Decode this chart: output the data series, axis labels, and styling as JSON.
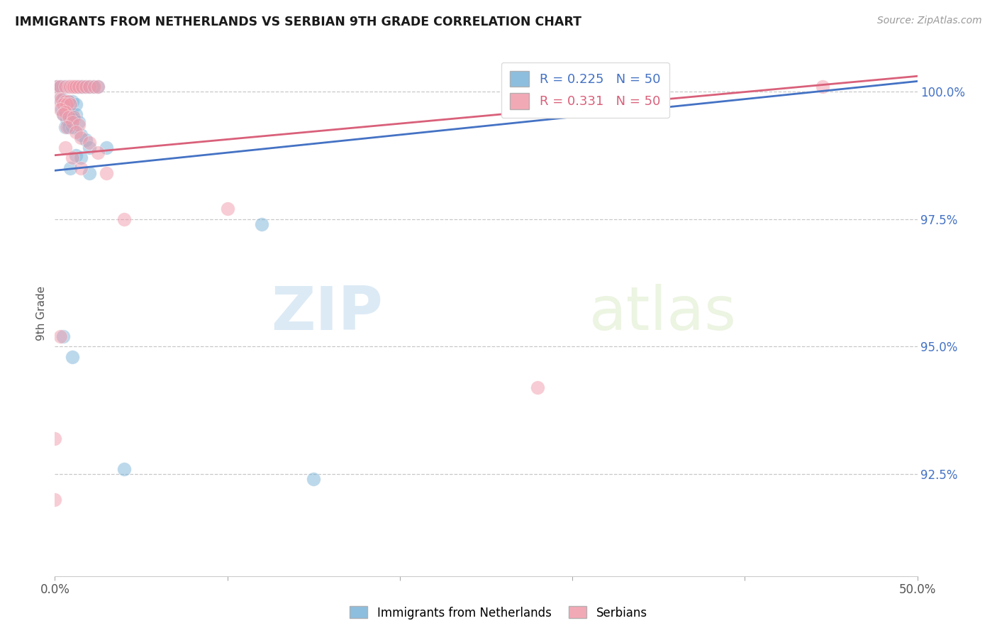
{
  "title": "IMMIGRANTS FROM NETHERLANDS VS SERBIAN 9TH GRADE CORRELATION CHART",
  "source": "Source: ZipAtlas.com",
  "ylabel": "9th Grade",
  "ylabel_right_ticks": [
    "100.0%",
    "97.5%",
    "95.0%",
    "92.5%"
  ],
  "ylabel_right_vals": [
    1.0,
    0.975,
    0.95,
    0.925
  ],
  "blue_color": "#7ab3d9",
  "pink_color": "#f09aaa",
  "blue_line_color": "#4472c4",
  "pink_line_color": "#d9607a",
  "xlim": [
    0.0,
    0.5
  ],
  "ylim": [
    0.905,
    1.008
  ],
  "grid_color": "#c8c8c8",
  "blue_scatter": [
    [
      0.001,
      1.001
    ],
    [
      0.003,
      1.001
    ],
    [
      0.005,
      1.001
    ],
    [
      0.007,
      1.001
    ],
    [
      0.008,
      1.001
    ],
    [
      0.009,
      1.001
    ],
    [
      0.01,
      1.001
    ],
    [
      0.011,
      1.001
    ],
    [
      0.012,
      1.001
    ],
    [
      0.013,
      1.001
    ],
    [
      0.014,
      1.001
    ],
    [
      0.015,
      1.001
    ],
    [
      0.016,
      1.001
    ],
    [
      0.018,
      1.001
    ],
    [
      0.02,
      1.001
    ],
    [
      0.022,
      1.001
    ],
    [
      0.025,
      1.001
    ],
    [
      0.003,
      0.9985
    ],
    [
      0.005,
      0.9985
    ],
    [
      0.007,
      0.9975
    ],
    [
      0.008,
      0.998
    ],
    [
      0.01,
      0.998
    ],
    [
      0.012,
      0.9975
    ],
    [
      0.004,
      0.9965
    ],
    [
      0.006,
      0.9965
    ],
    [
      0.005,
      0.9955
    ],
    [
      0.008,
      0.9955
    ],
    [
      0.01,
      0.9955
    ],
    [
      0.012,
      0.9955
    ],
    [
      0.007,
      0.9945
    ],
    [
      0.009,
      0.9945
    ],
    [
      0.011,
      0.9945
    ],
    [
      0.014,
      0.994
    ],
    [
      0.006,
      0.993
    ],
    [
      0.008,
      0.993
    ],
    [
      0.01,
      0.993
    ],
    [
      0.015,
      0.9915
    ],
    [
      0.018,
      0.9905
    ],
    [
      0.02,
      0.989
    ],
    [
      0.03,
      0.989
    ],
    [
      0.012,
      0.9875
    ],
    [
      0.015,
      0.987
    ],
    [
      0.009,
      0.985
    ],
    [
      0.02,
      0.984
    ],
    [
      0.12,
      0.974
    ],
    [
      0.005,
      0.952
    ],
    [
      0.01,
      0.948
    ],
    [
      0.04,
      0.926
    ],
    [
      0.15,
      0.924
    ]
  ],
  "pink_scatter": [
    [
      0.001,
      1.001
    ],
    [
      0.003,
      1.001
    ],
    [
      0.006,
      1.001
    ],
    [
      0.008,
      1.001
    ],
    [
      0.009,
      1.001
    ],
    [
      0.01,
      1.001
    ],
    [
      0.011,
      1.001
    ],
    [
      0.012,
      1.001
    ],
    [
      0.014,
      1.001
    ],
    [
      0.016,
      1.001
    ],
    [
      0.018,
      1.001
    ],
    [
      0.02,
      1.001
    ],
    [
      0.023,
      1.001
    ],
    [
      0.025,
      1.001
    ],
    [
      0.35,
      1.001
    ],
    [
      0.445,
      1.001
    ],
    [
      0.002,
      0.9985
    ],
    [
      0.004,
      0.9985
    ],
    [
      0.006,
      0.998
    ],
    [
      0.008,
      0.998
    ],
    [
      0.005,
      0.9975
    ],
    [
      0.007,
      0.9975
    ],
    [
      0.009,
      0.9975
    ],
    [
      0.003,
      0.9965
    ],
    [
      0.006,
      0.996
    ],
    [
      0.005,
      0.9955
    ],
    [
      0.008,
      0.995
    ],
    [
      0.011,
      0.995
    ],
    [
      0.01,
      0.994
    ],
    [
      0.014,
      0.9935
    ],
    [
      0.007,
      0.993
    ],
    [
      0.012,
      0.992
    ],
    [
      0.015,
      0.991
    ],
    [
      0.02,
      0.99
    ],
    [
      0.006,
      0.989
    ],
    [
      0.025,
      0.988
    ],
    [
      0.01,
      0.987
    ],
    [
      0.015,
      0.985
    ],
    [
      0.03,
      0.984
    ],
    [
      0.1,
      0.977
    ],
    [
      0.04,
      0.975
    ],
    [
      0.003,
      0.952
    ],
    [
      0.28,
      0.942
    ],
    [
      0.0,
      0.932
    ],
    [
      0.0,
      0.92
    ]
  ],
  "blue_line": {
    "x0": 0.0,
    "x1": 0.5,
    "y0": 0.9845,
    "y1": 1.002
  },
  "pink_line": {
    "x0": 0.0,
    "x1": 0.5,
    "y0": 0.9875,
    "y1": 1.003
  }
}
